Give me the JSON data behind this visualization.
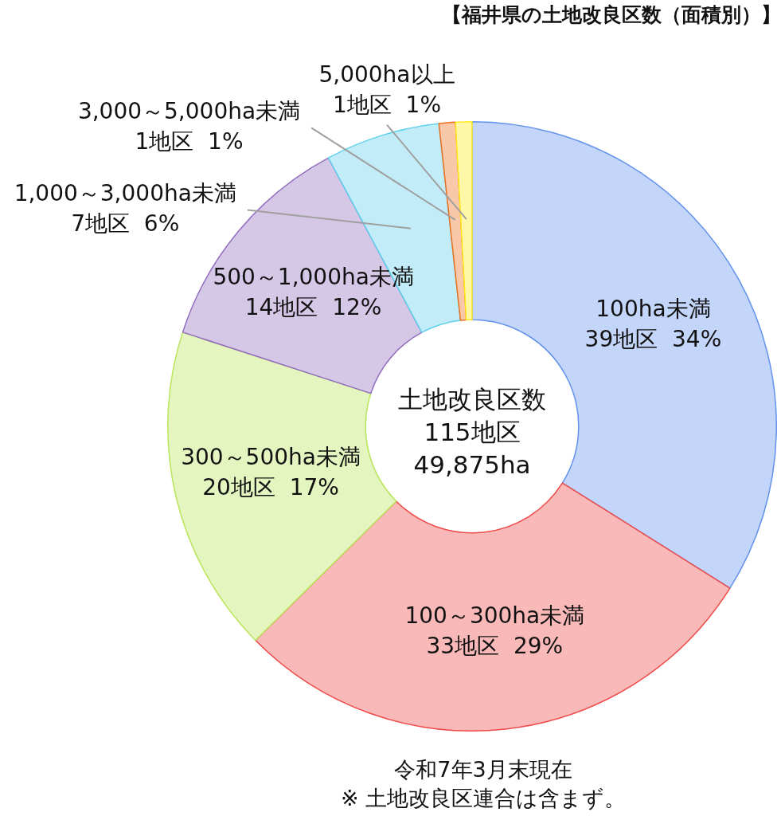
{
  "chart_data": {
    "type": "donut",
    "title": "【福井県の土地改良区数（面積別）】",
    "categories": [
      "100ha未満",
      "100～300ha未満",
      "300～500ha未満",
      "500～1,000ha未満",
      "1,000～3,000ha未満",
      "3,000～5,000ha未満",
      "5,000ha以上"
    ],
    "values": [
      39,
      33,
      20,
      14,
      7,
      1,
      1
    ],
    "value_labels": [
      "39地区  34%",
      "33地区  29%",
      "20地区  17%",
      "14地区  12%",
      "7地区  6%",
      "1地区  1%",
      "1地区  1%"
    ],
    "colors": [
      "#c3d5f8",
      "#f9b9b9",
      "#e4f5c0",
      "#d5c7e6",
      "#c2edf8",
      "#f8c8a8",
      "#fff7a8"
    ],
    "annotations": [
      "土地改良区数\n115地区\n49,875ha",
      "令和7年3月末現在\n※ 土地改良区連合は含まず。"
    ],
    "legend": false
  }
}
